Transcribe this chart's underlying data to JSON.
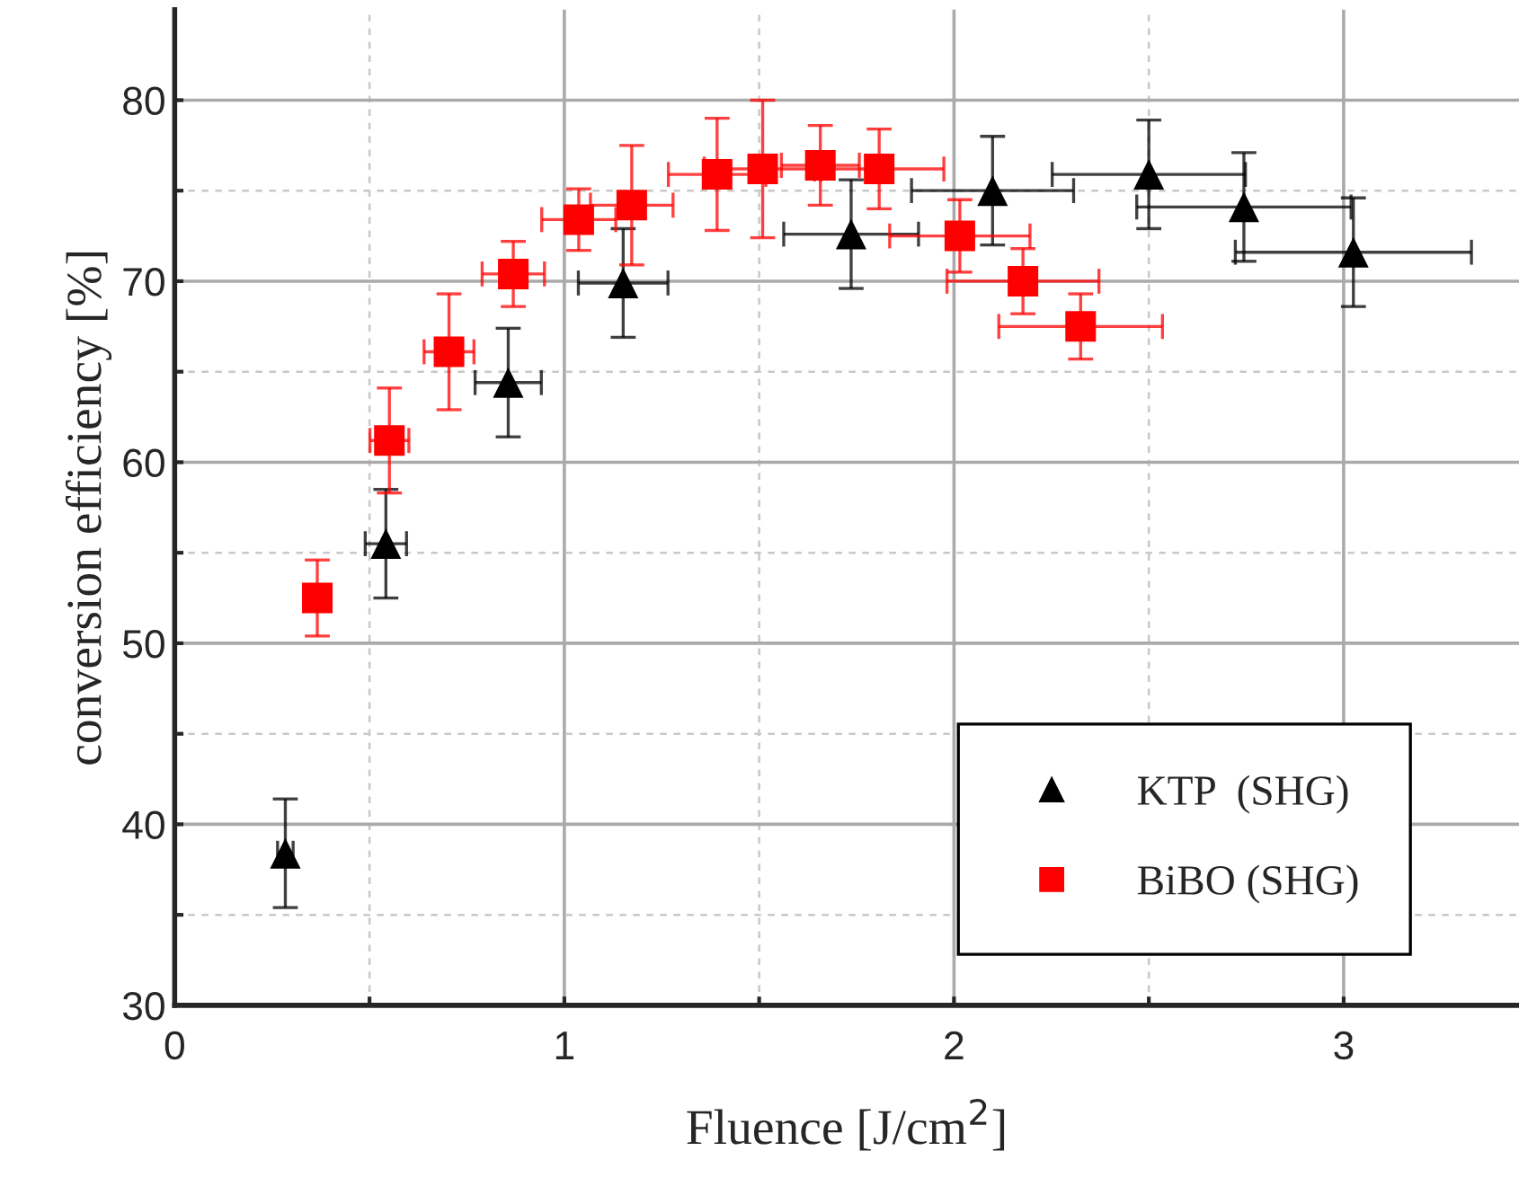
{
  "chart_data": {
    "type": "scatter",
    "xlabel": "Fluence [J/cm$^{2}$]",
    "ylabel": "conversion efficiency [%]",
    "xlim": [
      0,
      3.45
    ],
    "ylim": [
      30,
      85
    ],
    "xticks": [
      0,
      {
        "value": 0.5,
        "label": null
      },
      1,
      {
        "value": 1.5,
        "label": null
      },
      2,
      {
        "value": 2.5,
        "label": null
      },
      3
    ],
    "yticks": [
      30,
      {
        "value": 35,
        "label": null
      },
      40,
      {
        "value": 45,
        "label": null
      },
      50,
      {
        "value": 55,
        "label": null
      },
      60,
      {
        "value": 65,
        "label": null
      },
      70,
      {
        "value": 75,
        "label": null
      },
      80
    ],
    "grid": true,
    "legend": "bottom right",
    "series": [
      {
        "name": "KTP  (SHG)",
        "color": "#000000",
        "marker": "triangle",
        "x": [
          0.284,
          0.542,
          0.856,
          1.151,
          1.736,
          2.099,
          2.5,
          2.744,
          3.025
        ],
        "values": [
          38.4,
          55.5,
          64.4,
          69.9,
          72.6,
          75.0,
          75.9,
          74.1,
          71.6
        ],
        "errors": [
          3.0,
          3.0,
          3.0,
          3.0,
          3.0,
          3.0,
          3.0,
          3.0,
          3.0
        ],
        "xerrors": [
          0.02,
          0.053,
          0.085,
          0.115,
          0.173,
          0.208,
          0.248,
          0.275,
          0.303
        ]
      },
      {
        "name": "BiBO (SHG)",
        "color": "#ff0000",
        "marker": "square",
        "x": [
          0.366,
          0.551,
          0.704,
          0.869,
          1.037,
          1.173,
          1.392,
          1.509,
          1.657,
          1.808,
          2.015,
          2.177,
          2.325
        ],
        "values": [
          52.5,
          61.2,
          66.1,
          70.4,
          73.4,
          74.2,
          75.9,
          76.2,
          76.4,
          76.2,
          72.5,
          70.0,
          67.5
        ],
        "errors": [
          2.1,
          2.9,
          3.2,
          1.8,
          1.7,
          3.3,
          3.1,
          3.8,
          2.2,
          2.2,
          2.0,
          1.8,
          1.8
        ],
        "xerrors": [
          0.02,
          0.05,
          0.064,
          0.08,
          0.095,
          0.106,
          0.125,
          0.15,
          0.1,
          0.166,
          0.18,
          0.195,
          0.21
        ]
      }
    ]
  }
}
